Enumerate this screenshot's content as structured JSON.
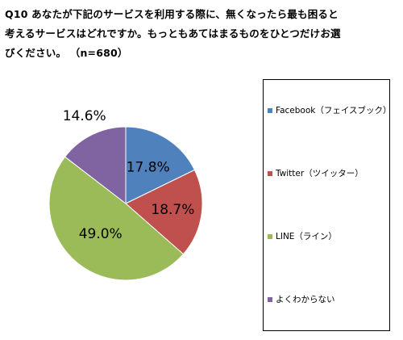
{
  "question": {
    "line1": "Q10 あなたが下記のサービスを利用する際に、無くなったら最も困ると",
    "line2": "考えるサービスはどれですか。もっともあてはまるものをひとつだけお選",
    "line3": "びください。 （n=680）"
  },
  "colors": {
    "facebook": "#4F81BD",
    "twitter": "#C0504D",
    "line": "#9BBB59",
    "unknown": "#8064A2"
  },
  "chart_data": {
    "type": "pie",
    "title": "",
    "unit": "%",
    "start": "12 o'clock, clockwise",
    "legend_position": "right",
    "categories": [
      "Facebook（フェイスブック）",
      "Twitter（ツイッター）",
      "LINE（ライン）",
      "よくわからない"
    ],
    "values": [
      17.8,
      18.7,
      49.0,
      14.6
    ],
    "labels": [
      "17.8%",
      "18.7%",
      "49.0%",
      "14.6%"
    ]
  }
}
